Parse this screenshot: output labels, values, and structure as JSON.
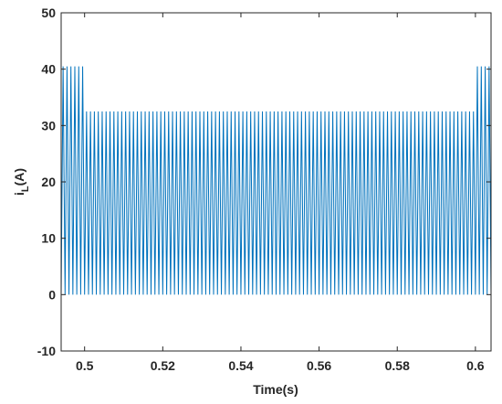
{
  "chart_data": {
    "type": "line",
    "xlabel": "Time(s)",
    "ylabel": [
      "i",
      "L",
      "(A)"
    ],
    "color": "#0072bd",
    "xlim": [
      0.494,
      0.604
    ],
    "ylim": [
      -10,
      50
    ],
    "xticks": [
      0.5,
      0.52,
      0.54,
      0.56,
      0.58,
      0.6
    ],
    "yticks": [
      -10,
      0,
      10,
      20,
      30,
      40,
      50
    ],
    "x": [
      0.494,
      0.4945,
      0.495,
      0.4955,
      0.496,
      0.4965,
      0.497,
      0.4975,
      0.498,
      0.4985,
      0.499,
      0.4995,
      0.5,
      0.5005,
      0.501,
      0.5015,
      0.502,
      0.5025,
      0.503,
      0.5035,
      0.504,
      0.5045,
      0.505,
      0.5055,
      0.506,
      0.5065,
      0.507,
      0.5075,
      0.508,
      0.5085,
      0.509,
      0.5095,
      0.51,
      0.5105,
      0.511,
      0.5115,
      0.512,
      0.5125,
      0.513,
      0.5135,
      0.514,
      0.5145,
      0.515,
      0.5155,
      0.516,
      0.5165,
      0.517,
      0.5175,
      0.518,
      0.5185,
      0.519,
      0.5195,
      0.52,
      0.5205,
      0.521,
      0.5215,
      0.522,
      0.5225,
      0.523,
      0.5235,
      0.524,
      0.5245,
      0.525,
      0.5255,
      0.526,
      0.5265,
      0.527,
      0.5275,
      0.528,
      0.5285,
      0.529,
      0.5295,
      0.53,
      0.5305,
      0.531,
      0.5315,
      0.532,
      0.5325,
      0.533,
      0.5335,
      0.534,
      0.5345,
      0.535,
      0.5355,
      0.536,
      0.5365,
      0.537,
      0.5375,
      0.538,
      0.5385,
      0.539,
      0.5395,
      0.54,
      0.5405,
      0.541,
      0.5415,
      0.542,
      0.5425,
      0.543,
      0.5435,
      0.544,
      0.5445,
      0.545,
      0.5455,
      0.546,
      0.5465,
      0.547,
      0.5475,
      0.548,
      0.5485,
      0.549,
      0.5495,
      0.55,
      0.5505,
      0.551,
      0.5515,
      0.552,
      0.5525,
      0.553,
      0.5535,
      0.554,
      0.5545,
      0.555,
      0.5555,
      0.556,
      0.5565,
      0.557,
      0.5575,
      0.558,
      0.5585,
      0.559,
      0.5595,
      0.56,
      0.5605,
      0.561,
      0.5615,
      0.562,
      0.5625,
      0.563,
      0.5635,
      0.564,
      0.5645,
      0.565,
      0.5655,
      0.566,
      0.5665,
      0.567,
      0.5675,
      0.568,
      0.5685,
      0.569,
      0.5695,
      0.57,
      0.5705,
      0.571,
      0.5715,
      0.572,
      0.5725,
      0.573,
      0.5735,
      0.574,
      0.5745,
      0.575,
      0.5755,
      0.576,
      0.5765,
      0.577,
      0.5775,
      0.578,
      0.5785,
      0.579,
      0.5795,
      0.58,
      0.5805,
      0.581,
      0.5815,
      0.582,
      0.5825,
      0.583,
      0.5835,
      0.584,
      0.5845,
      0.585,
      0.5855,
      0.586,
      0.5865,
      0.587,
      0.5875,
      0.588,
      0.5885,
      0.589,
      0.5895,
      0.59,
      0.5905,
      0.591,
      0.5915,
      0.592,
      0.5925,
      0.593,
      0.5935,
      0.594,
      0.5945,
      0.595,
      0.5955,
      0.596,
      0.5965,
      0.597,
      0.5975,
      0.598,
      0.5985,
      0.599,
      0.5995,
      0.6,
      0.6005,
      0.601,
      0.6015,
      0.602,
      0.6025,
      0.603,
      0.6035,
      0.604
    ],
    "values": [
      0,
      40.5,
      0,
      40.5,
      0,
      40.5,
      0,
      40.5,
      0,
      40.5,
      0,
      40.5,
      0,
      32.5,
      0,
      32.5,
      0,
      32.5,
      0,
      32.5,
      0,
      32.5,
      0,
      32.5,
      0,
      32.5,
      0,
      32.5,
      0,
      32.5,
      0,
      32.5,
      0,
      32.5,
      0,
      32.5,
      0,
      32.5,
      0,
      32.5,
      0,
      32.5,
      0,
      32.5,
      0,
      32.5,
      0,
      32.5,
      0,
      32.5,
      0,
      32.5,
      0,
      32.5,
      0,
      32.5,
      0,
      32.5,
      0,
      32.5,
      0,
      32.5,
      0,
      32.5,
      0,
      32.5,
      0,
      32.5,
      0,
      32.5,
      0,
      32.5,
      0,
      32.5,
      0,
      32.5,
      0,
      32.5,
      0,
      32.5,
      0,
      32.5,
      0,
      32.5,
      0,
      32.5,
      0,
      32.5,
      0,
      32.5,
      0,
      32.5,
      0,
      32.5,
      0,
      32.5,
      0,
      32.5,
      0,
      32.5,
      0,
      32.5,
      0,
      32.5,
      0,
      32.5,
      0,
      32.5,
      0,
      32.5,
      0,
      32.5,
      0,
      32.5,
      0,
      32.5,
      0,
      32.5,
      0,
      32.5,
      0,
      32.5,
      0,
      32.5,
      0,
      32.5,
      0,
      32.5,
      0,
      32.5,
      0,
      32.5,
      0,
      32.5,
      0,
      32.5,
      0,
      32.5,
      0,
      32.5,
      0,
      32.5,
      0,
      32.5,
      0,
      32.5,
      0,
      32.5,
      0,
      32.5,
      0,
      32.5,
      0,
      32.5,
      0,
      32.5,
      0,
      32.5,
      0,
      32.5,
      0,
      32.5,
      0,
      32.5,
      0,
      32.5,
      0,
      32.5,
      0,
      32.5,
      0,
      32.5,
      0,
      32.5,
      0,
      32.5,
      0,
      32.5,
      0,
      32.5,
      0,
      32.5,
      0,
      32.5,
      0,
      32.5,
      0,
      32.5,
      0,
      32.5,
      0,
      32.5,
      0,
      32.5,
      0,
      32.5,
      0,
      32.5,
      0,
      32.5,
      0,
      32.5,
      0,
      32.5,
      0,
      32.5,
      0,
      32.5,
      0,
      32.5,
      0,
      32.5,
      0,
      40.5,
      0,
      40.5,
      0,
      40.5,
      0,
      40.5,
      0
    ]
  }
}
